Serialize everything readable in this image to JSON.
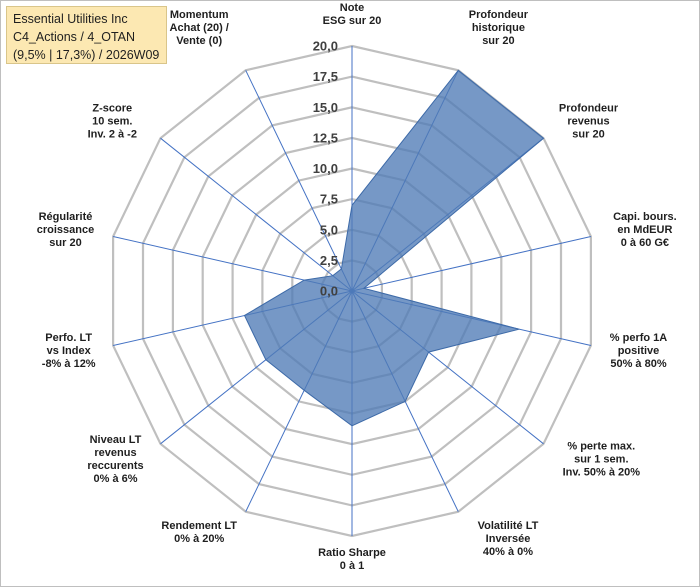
{
  "title_box": {
    "line1": "Essential Utilities Inc",
    "line2": "C4_Actions / 4_OTAN",
    "line3": "(9,5% | 17,3%) / 2026W09"
  },
  "chart_data": {
    "type": "radar",
    "title": "Essential Utilities Inc",
    "rmax": 20,
    "rings": [
      0,
      2.5,
      5,
      7.5,
      10,
      12.5,
      15,
      17.5,
      20
    ],
    "tick_labels": [
      "0,0",
      "2,5",
      "5,0",
      "7,5",
      "10,0",
      "12,5",
      "15,0",
      "17,5",
      "20,0"
    ],
    "axes": [
      {
        "lines": [
          "Note",
          "ESG sur 20"
        ],
        "value": 7
      },
      {
        "lines": [
          "Profondeur",
          "historique",
          "sur 20"
        ],
        "value": 20
      },
      {
        "lines": [
          "Profondeur",
          "revenus",
          "sur 20"
        ],
        "value": 20
      },
      {
        "lines": [
          "Capi. bours.",
          "en MdEUR",
          "0 à 60 G€"
        ],
        "value": 1
      },
      {
        "lines": [
          "% perfo 1A",
          "positive",
          "50% à 80%"
        ],
        "value": 14
      },
      {
        "lines": [
          "% perte max.",
          "sur 1 sem.",
          "Inv. 50% à 20%"
        ],
        "value": 8
      },
      {
        "lines": [
          "Volatilité LT",
          "Inversée",
          "40% à 0%"
        ],
        "value": 10
      },
      {
        "lines": [
          "Ratio Sharpe",
          "0 à 1"
        ],
        "value": 11
      },
      {
        "lines": [
          "Rendement LT",
          "0% à 20%"
        ],
        "value": 9
      },
      {
        "lines": [
          "Niveau LT",
          "revenus",
          "reccurents",
          "0% à 6%"
        ],
        "value": 9
      },
      {
        "lines": [
          "Perfo. LT",
          "vs Index",
          "-8% à 12%"
        ],
        "value": 9
      },
      {
        "lines": [
          "Régularité",
          "croissance",
          "sur 20"
        ],
        "value": 4
      },
      {
        "lines": [
          "Z-score",
          "10 sem.",
          "Inv. 2 à -2"
        ],
        "value": 2
      },
      {
        "lines": [
          "Momentum",
          "Achat (20) /",
          "Vente (0)"
        ],
        "value": 2
      }
    ],
    "colors": {
      "fill": "#4f7bb6",
      "fill_opacity": 0.78,
      "stroke": "#3d6aa8",
      "spoke": "#4472c4",
      "grid": "#bfbfbf"
    }
  }
}
